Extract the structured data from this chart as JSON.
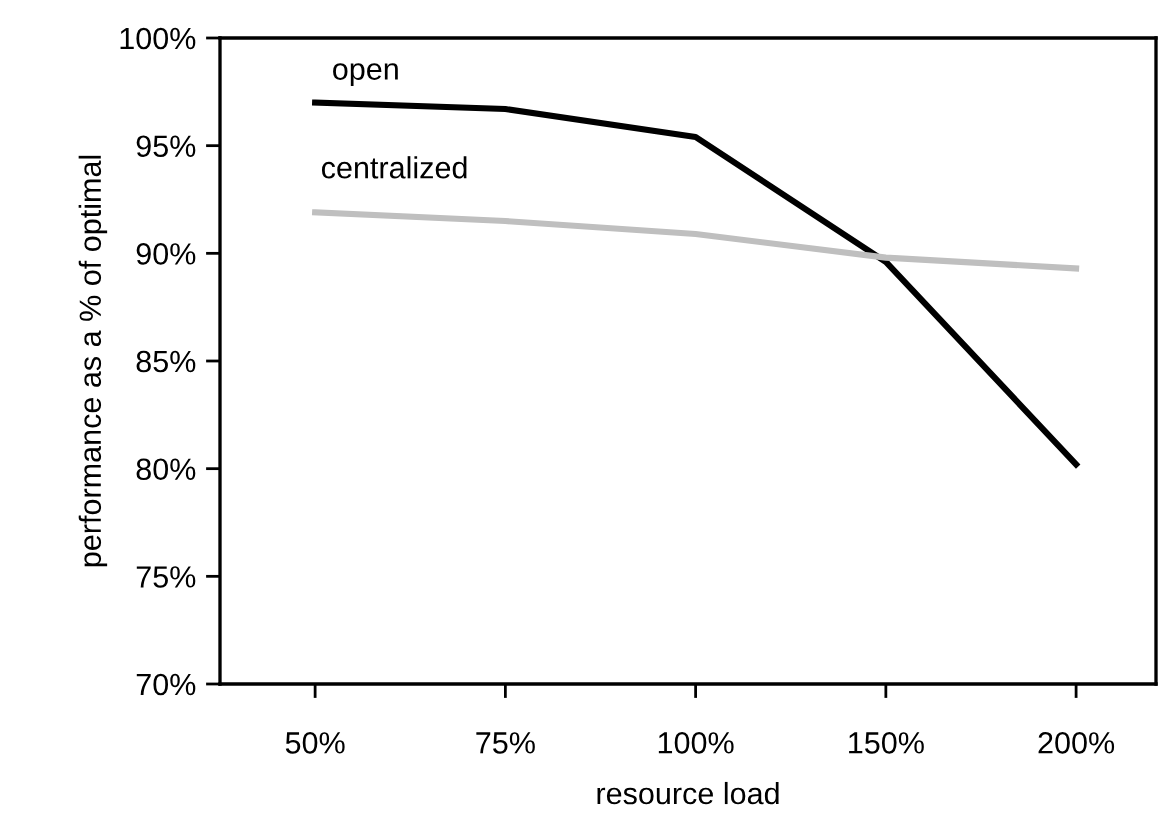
{
  "chart_data": {
    "type": "line",
    "xlabel": "resource load",
    "ylabel": "performance as a % of optimal",
    "categories": [
      "50%",
      "75%",
      "100%",
      "150%",
      "200%"
    ],
    "ylim": [
      70,
      100
    ],
    "yticks": [
      {
        "value": 70,
        "label": "70%"
      },
      {
        "value": 75,
        "label": "75%"
      },
      {
        "value": 80,
        "label": "80%"
      },
      {
        "value": 85,
        "label": "85%"
      },
      {
        "value": 90,
        "label": "90%"
      },
      {
        "value": 95,
        "label": "95%"
      },
      {
        "value": 100,
        "label": "100%"
      }
    ],
    "grid": false,
    "legend": false,
    "marker": "none",
    "line_style": "solid",
    "series": [
      {
        "name": "open",
        "color": "#000000",
        "values": [
          97.0,
          96.7,
          95.4,
          89.6,
          80.2
        ]
      },
      {
        "name": "centralized",
        "color": "#bfbfbf",
        "values": [
          91.9,
          91.5,
          90.9,
          89.8,
          89.3
        ]
      }
    ]
  }
}
